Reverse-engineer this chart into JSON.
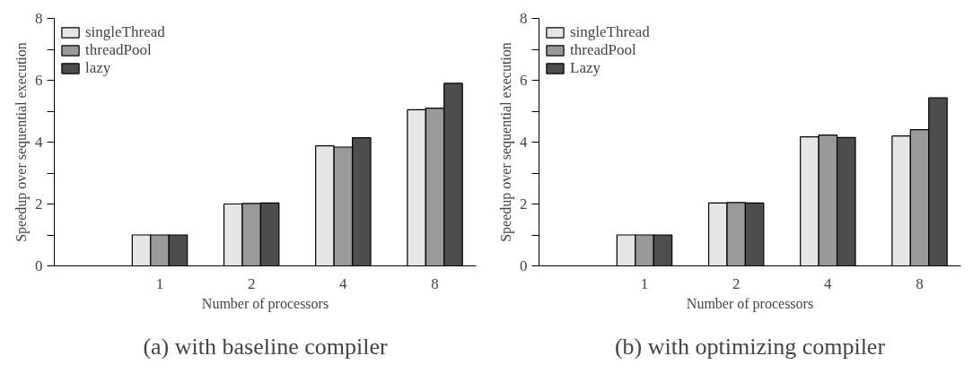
{
  "chart_data": [
    {
      "type": "bar",
      "categories": [
        null,
        "1",
        "2",
        "4",
        "8"
      ],
      "xlabel": "Number of processors",
      "ylabel": "Speedup over sequential execution",
      "annotations": [
        "(a) with baseline compiler"
      ],
      "ylim": [
        0,
        8
      ],
      "yticks": [
        0,
        {
          "value": 1,
          "label": null
        },
        2,
        {
          "value": 3,
          "label": null
        },
        4,
        {
          "value": 5,
          "label": null
        },
        6,
        {
          "value": 7,
          "label": null
        },
        8
      ],
      "grid": false,
      "legend": "top left",
      "series": [
        {
          "name": "singleThread",
          "color": "#e6e6e6",
          "values": [
            null,
            1.0,
            2.0,
            3.88,
            5.05
          ]
        },
        {
          "name": "threadPool",
          "color": "#999999",
          "values": [
            null,
            1.0,
            2.02,
            3.84,
            5.1
          ]
        },
        {
          "name": "lazy",
          "color": "#4d4d4d",
          "values": [
            null,
            1.0,
            2.03,
            4.14,
            5.9
          ]
        }
      ]
    },
    {
      "type": "bar",
      "categories": [
        null,
        "1",
        "2",
        "4",
        "8"
      ],
      "xlabel": "Number of processors",
      "ylabel": "Speedup over sequential execution",
      "annotations": [
        "(b) with optimizing compiler"
      ],
      "ylim": [
        0,
        8
      ],
      "yticks": [
        0,
        {
          "value": 1,
          "label": null
        },
        2,
        {
          "value": 3,
          "label": null
        },
        4,
        {
          "value": 5,
          "label": null
        },
        6,
        {
          "value": 7,
          "label": null
        },
        8
      ],
      "grid": false,
      "legend": "top left",
      "series": [
        {
          "name": "singleThread",
          "color": "#e6e6e6",
          "values": [
            null,
            1.0,
            2.03,
            4.17,
            4.2
          ]
        },
        {
          "name": "threadPool",
          "color": "#999999",
          "values": [
            null,
            1.0,
            2.05,
            4.23,
            4.4
          ]
        },
        {
          "name": "Lazy",
          "color": "#4d4d4d",
          "values": [
            null,
            1.0,
            2.03,
            4.15,
            5.43
          ]
        }
      ]
    }
  ]
}
